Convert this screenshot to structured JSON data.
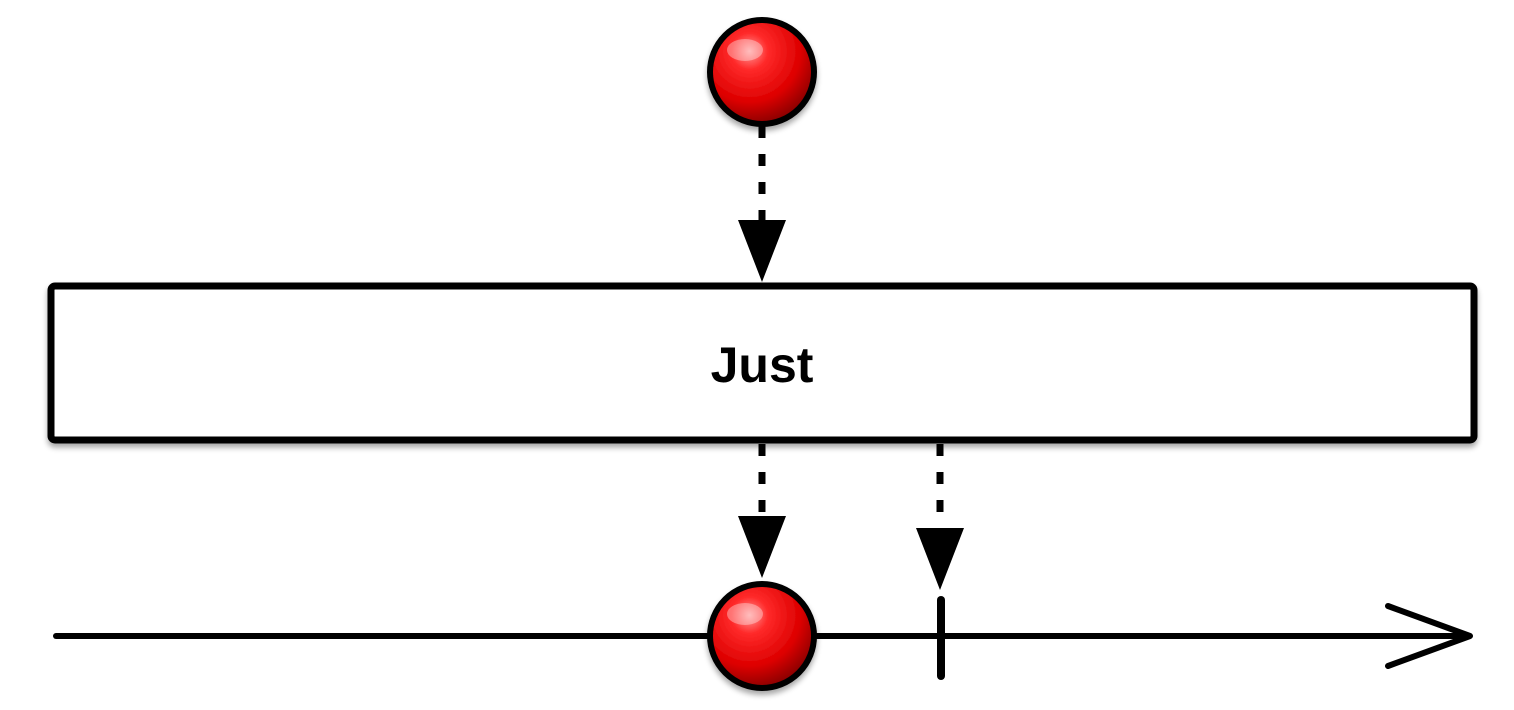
{
  "operator": {
    "label": "Just"
  },
  "colors": {
    "background": "#ffffff",
    "stroke": "#000000",
    "marble_fill": "#e8000b",
    "marble_highlight": "#ff8a8a",
    "marble_shadow": "#9a0000",
    "operator_box_fill": "#ffffff"
  },
  "input": {
    "marbles": [
      {
        "color": "red",
        "icon": "red-marble-icon"
      }
    ]
  },
  "output": {
    "marbles": [
      {
        "color": "red",
        "icon": "red-marble-icon"
      }
    ],
    "completion": {
      "icon": "completion-tick-icon"
    },
    "timeline": {
      "icon": "time-arrow-icon"
    }
  }
}
